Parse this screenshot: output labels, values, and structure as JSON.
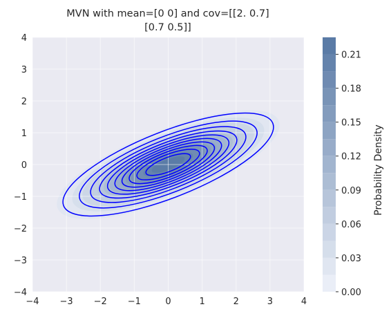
{
  "chart_data": {
    "type": "contour",
    "title": [
      "MVN with mean=[0 0] and cov=[[2.  0.7]",
      "[0.7 0.5]]"
    ],
    "mean": [
      0,
      0
    ],
    "cov": [
      [
        2.0,
        0.7
      ],
      [
        0.7,
        0.5
      ]
    ],
    "xlim": [
      -4,
      4
    ],
    "ylim": [
      -4,
      4
    ],
    "x_ticks": [
      "−4",
      "−3",
      "−2",
      "−1",
      "0",
      "1",
      "2",
      "3",
      "4"
    ],
    "y_ticks": [
      "4",
      "3",
      "2",
      "1",
      "0",
      "−1",
      "−2",
      "−3",
      "−4"
    ],
    "grid": true,
    "filled_levels": [
      0.0,
      0.015,
      0.03,
      0.045,
      0.06,
      0.075,
      0.09,
      0.105,
      0.12,
      0.135,
      0.15,
      0.165,
      0.18,
      0.195,
      0.21,
      0.225
    ],
    "line_levels": [
      0.02,
      0.04,
      0.06,
      0.08,
      0.1,
      0.12,
      0.14,
      0.16,
      0.18,
      0.2
    ],
    "line_color": "#0000ff",
    "colorbar": {
      "label": "Probability Density",
      "range": [
        0,
        0.225
      ],
      "ticks": [
        0.0,
        0.03,
        0.06,
        0.09,
        0.12,
        0.15,
        0.18,
        0.21
      ],
      "tick_labels": [
        "0.00",
        "0.03",
        "0.06",
        "0.09",
        "0.12",
        "0.15",
        "0.18",
        "0.21"
      ]
    },
    "colors": {
      "background": "#eaeaf2",
      "grid": "#ffffff",
      "low": "#eaeef7",
      "high": "#5a7ba6"
    }
  }
}
